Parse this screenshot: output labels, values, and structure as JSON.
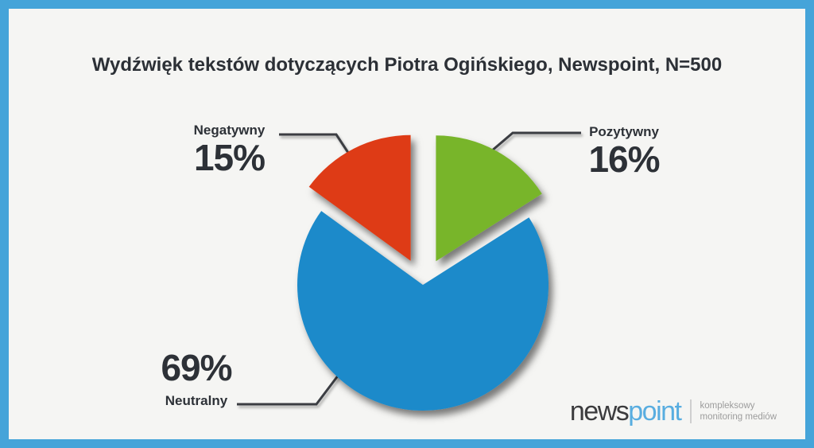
{
  "frame": {
    "border_color": "#45a4d9",
    "background": "#f5f5f3"
  },
  "chart_data": {
    "type": "pie",
    "title": "Wydźwięk tekstów dotyczących Piotra Ogińskiego, Newspoint, N=500",
    "n": 500,
    "legend_position": "none",
    "start_angle_deg": 0,
    "slices": [
      {
        "label": "Pozytywny",
        "value_pct": 16,
        "pct_label": "16%",
        "color": "#78b52b",
        "exploded": true
      },
      {
        "label": "Neutralny",
        "value_pct": 69,
        "pct_label": "69%",
        "color": "#1b8aca",
        "exploded": false
      },
      {
        "label": "Negatywny",
        "value_pct": 15,
        "pct_label": "15%",
        "color": "#de3b18",
        "exploded": true
      }
    ]
  },
  "footer_logo": {
    "brand_dark": "news",
    "brand_accent": "point",
    "brand_dark_color": "#3b3b3d",
    "brand_accent_color": "#58ade0",
    "tagline_line1": "kompleksowy",
    "tagline_line2": "monitoring mediów",
    "tagline_color": "#9c9c9c"
  }
}
